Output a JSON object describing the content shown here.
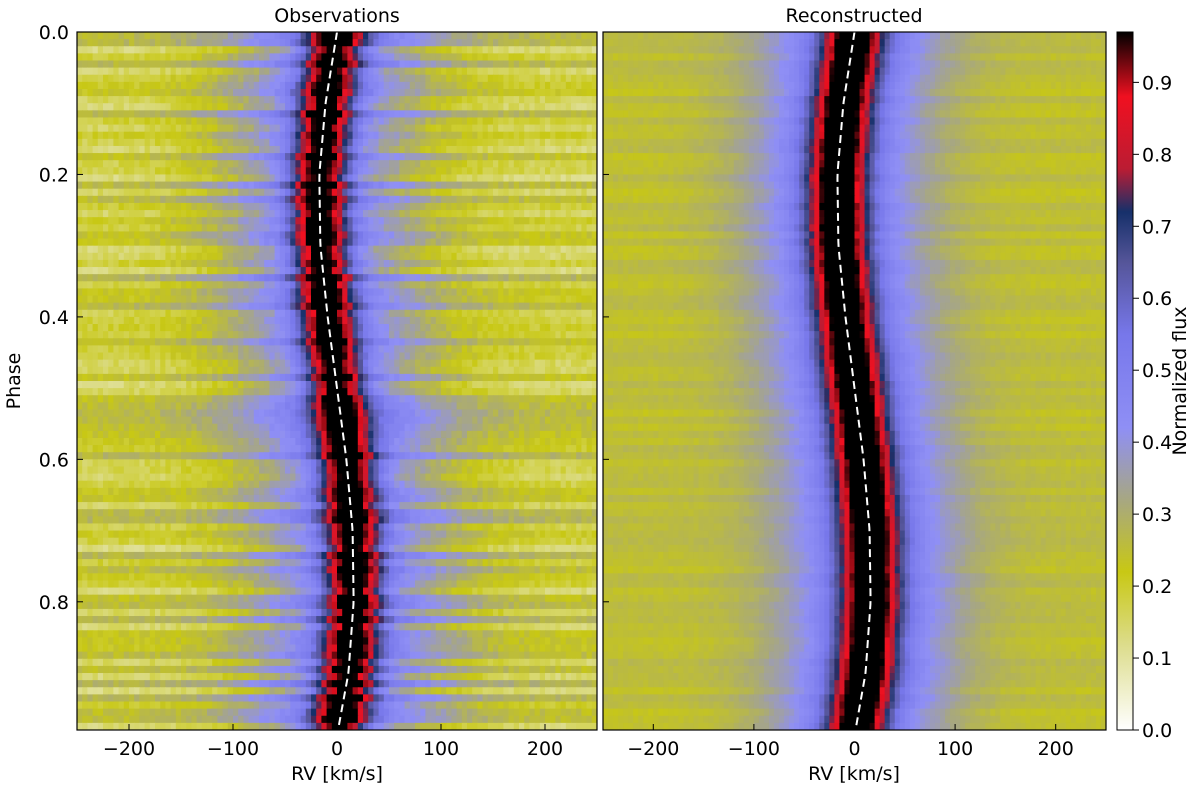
{
  "chart_data": [
    {
      "type": "heatmap",
      "title": "Observations",
      "xlabel": "RV [km/s]",
      "ylabel": "Phase",
      "xlim": [
        -250,
        250
      ],
      "ylim": [
        0.0,
        0.98
      ],
      "y_inverted": true,
      "x_ticks": [
        -200,
        -100,
        0,
        100,
        200
      ],
      "x_tick_labels": [
        "−200",
        "−100",
        "0",
        "100",
        "200"
      ],
      "y_ticks": [
        0.0,
        0.2,
        0.4,
        0.6,
        0.8
      ],
      "y_tick_labels": [
        "0.0",
        "0.2",
        "0.4",
        "0.6",
        "0.8"
      ],
      "line_profile": {
        "center_width_kms": 18,
        "inner_wing_width_kms": 70,
        "continuum_level": 0.2
      },
      "rv_curve": {
        "style": "white dashed",
        "phase": [
          0.0,
          0.1,
          0.2,
          0.3,
          0.4,
          0.5,
          0.6,
          0.7,
          0.8,
          0.9,
          0.98
        ],
        "rv": [
          0,
          -11,
          -17,
          -16,
          -9,
          0,
          9,
          15,
          16,
          11,
          1
        ]
      },
      "noise": "horizontal banding"
    },
    {
      "type": "heatmap",
      "title": "Reconstructed",
      "xlabel": "RV [km/s]",
      "ylabel": "",
      "xlim": [
        -250,
        250
      ],
      "ylim": [
        0.0,
        0.98
      ],
      "y_inverted": true,
      "x_ticks": [
        -200,
        -100,
        0,
        100,
        200
      ],
      "x_tick_labels": [
        "−200",
        "−100",
        "0",
        "100",
        "200"
      ],
      "line_profile": {
        "center_width_kms": 20,
        "inner_wing_width_kms": 60,
        "continuum_level": 0.25
      },
      "rv_curve": {
        "style": "white dashed",
        "phase": [
          0.0,
          0.1,
          0.2,
          0.3,
          0.4,
          0.5,
          0.6,
          0.7,
          0.8,
          0.9,
          0.98
        ],
        "rv": [
          0,
          -11,
          -17,
          -16,
          -9,
          0,
          9,
          15,
          16,
          11,
          1
        ]
      },
      "noise": "smooth"
    }
  ],
  "colorbar": {
    "label": "Normalized flux",
    "range": [
      0.0,
      0.97
    ],
    "ticks": [
      0.0,
      0.1,
      0.2,
      0.3,
      0.4,
      0.5,
      0.6,
      0.7,
      0.8,
      0.9
    ],
    "tick_labels": [
      "0.0",
      "0.1",
      "0.2",
      "0.3",
      "0.4",
      "0.5",
      "0.6",
      "0.7",
      "0.8",
      "0.9"
    ],
    "colormap": [
      {
        "v": 0.0,
        "color": "#ffffff"
      },
      {
        "v": 0.12,
        "color": "#dcdc8a"
      },
      {
        "v": 0.22,
        "color": "#c8c814"
      },
      {
        "v": 0.32,
        "color": "#a7a782"
      },
      {
        "v": 0.42,
        "color": "#8f8ff5"
      },
      {
        "v": 0.55,
        "color": "#7777ea"
      },
      {
        "v": 0.65,
        "color": "#555599"
      },
      {
        "v": 0.72,
        "color": "#16306a"
      },
      {
        "v": 0.78,
        "color": "#bb1c33"
      },
      {
        "v": 0.88,
        "color": "#f01020"
      },
      {
        "v": 0.97,
        "color": "#000000"
      }
    ]
  }
}
